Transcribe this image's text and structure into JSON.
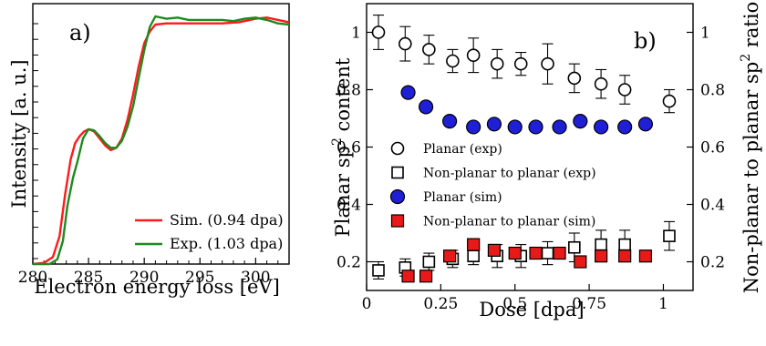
{
  "chart_data": [
    {
      "panel_label": "a)",
      "type": "line",
      "xlabel": "Electron energy loss [eV]",
      "ylabel": "Intensity [a. u.]",
      "xlim": [
        280,
        303
      ],
      "ylim": [
        0,
        1.12
      ],
      "x_ticks": [
        280,
        285,
        290,
        295,
        300
      ],
      "y_ticks_labeled": false,
      "grid": false,
      "legend_position": "lower-right",
      "series": [
        {
          "name": "Sim. (0.94 dpa)",
          "color": "#ff1a1a",
          "points": [
            [
              280,
              0.0
            ],
            [
              281,
              0.005
            ],
            [
              281.8,
              0.03
            ],
            [
              282.4,
              0.12
            ],
            [
              282.9,
              0.3
            ],
            [
              283.4,
              0.45
            ],
            [
              283.8,
              0.52
            ],
            [
              284.2,
              0.55
            ],
            [
              284.6,
              0.57
            ],
            [
              285.0,
              0.58
            ],
            [
              285.5,
              0.57
            ],
            [
              286.0,
              0.54
            ],
            [
              286.5,
              0.51
            ],
            [
              287.0,
              0.49
            ],
            [
              287.5,
              0.5
            ],
            [
              288.0,
              0.54
            ],
            [
              288.5,
              0.62
            ],
            [
              289.0,
              0.73
            ],
            [
              289.5,
              0.85
            ],
            [
              290.0,
              0.95
            ],
            [
              290.5,
              1.0
            ],
            [
              291.0,
              1.03
            ],
            [
              292.0,
              1.035
            ],
            [
              293.0,
              1.035
            ],
            [
              295.0,
              1.035
            ],
            [
              297.0,
              1.035
            ],
            [
              298.5,
              1.04
            ],
            [
              300.0,
              1.055
            ],
            [
              301.0,
              1.06
            ],
            [
              302.0,
              1.05
            ],
            [
              303.0,
              1.04
            ]
          ]
        },
        {
          "name": "Exp. (1.03 dpa)",
          "color": "#1f8a1f",
          "points": [
            [
              280,
              0.0
            ],
            [
              281.5,
              0.0
            ],
            [
              282.2,
              0.02
            ],
            [
              282.7,
              0.1
            ],
            [
              283.1,
              0.25
            ],
            [
              283.6,
              0.37
            ],
            [
              284.0,
              0.44
            ],
            [
              284.5,
              0.54
            ],
            [
              285.0,
              0.58
            ],
            [
              285.5,
              0.575
            ],
            [
              286.0,
              0.55
            ],
            [
              286.5,
              0.52
            ],
            [
              287.0,
              0.5
            ],
            [
              287.5,
              0.5
            ],
            [
              288.0,
              0.53
            ],
            [
              288.5,
              0.59
            ],
            [
              289.0,
              0.68
            ],
            [
              289.5,
              0.8
            ],
            [
              290.0,
              0.92
            ],
            [
              290.5,
              1.02
            ],
            [
              291.0,
              1.065
            ],
            [
              292.0,
              1.055
            ],
            [
              293.0,
              1.06
            ],
            [
              294.0,
              1.05
            ],
            [
              295.0,
              1.05
            ],
            [
              296.0,
              1.05
            ],
            [
              297.0,
              1.05
            ],
            [
              298.0,
              1.045
            ],
            [
              299.0,
              1.055
            ],
            [
              300.0,
              1.06
            ],
            [
              301.0,
              1.05
            ],
            [
              302.0,
              1.035
            ],
            [
              303.0,
              1.03
            ]
          ]
        }
      ]
    },
    {
      "panel_label": "b)",
      "type": "scatter",
      "xlabel": "Dose [dpa]",
      "ylabel": "Planar sp",
      "ylabel_sup": "2",
      "ylabel_rest": " content",
      "ylabel_right": "Non-planar to planar sp",
      "ylabel_right_sup": "2",
      "ylabel_right_rest": " ratio",
      "xlim": [
        0,
        1.1
      ],
      "ylim": [
        0.1,
        1.1
      ],
      "x_ticks": [
        0,
        0.25,
        0.5,
        0.75,
        1
      ],
      "x_tick_labels": [
        "0",
        "0.25",
        "0.5",
        "0.75",
        "1"
      ],
      "y_ticks": [
        0.2,
        0.4,
        0.6,
        0.8,
        1
      ],
      "y_tick_labels": [
        "0.2",
        "0.4",
        "0.6",
        "0.8",
        "1"
      ],
      "grid": false,
      "legend_position": "center",
      "series": [
        {
          "name": "Planar (exp)",
          "marker": "circle-open",
          "color": "#000000",
          "x": [
            0.04,
            0.13,
            0.21,
            0.29,
            0.36,
            0.44,
            0.52,
            0.61,
            0.7,
            0.79,
            0.87,
            1.02
          ],
          "y": [
            1.0,
            0.96,
            0.94,
            0.9,
            0.92,
            0.89,
            0.89,
            0.89,
            0.84,
            0.82,
            0.8,
            0.76
          ],
          "yerr": [
            0.06,
            0.06,
            0.05,
            0.04,
            0.06,
            0.05,
            0.04,
            0.07,
            0.05,
            0.05,
            0.05,
            0.04
          ]
        },
        {
          "name": "Non-planar to planar (exp)",
          "marker": "square-open",
          "color": "#000000",
          "x": [
            0.04,
            0.13,
            0.21,
            0.29,
            0.36,
            0.44,
            0.52,
            0.61,
            0.7,
            0.79,
            0.87,
            1.02
          ],
          "y": [
            0.17,
            0.18,
            0.2,
            0.21,
            0.22,
            0.22,
            0.22,
            0.23,
            0.25,
            0.26,
            0.26,
            0.29
          ],
          "yerr": [
            0.03,
            0.03,
            0.03,
            0.03,
            0.03,
            0.04,
            0.04,
            0.04,
            0.05,
            0.05,
            0.05,
            0.05
          ]
        },
        {
          "name": "Planar (sim)",
          "marker": "circle-filled",
          "color": "#1f1fd6",
          "x": [
            0.14,
            0.2,
            0.28,
            0.36,
            0.43,
            0.5,
            0.57,
            0.65,
            0.72,
            0.79,
            0.87,
            0.94
          ],
          "y": [
            0.79,
            0.74,
            0.69,
            0.67,
            0.68,
            0.67,
            0.67,
            0.67,
            0.69,
            0.67,
            0.67,
            0.68
          ]
        },
        {
          "name": "Non-planar to planar (sim)",
          "marker": "square-filled",
          "color": "#e81919",
          "x": [
            0.14,
            0.2,
            0.28,
            0.36,
            0.43,
            0.5,
            0.57,
            0.65,
            0.72,
            0.79,
            0.87,
            0.94
          ],
          "y": [
            0.15,
            0.15,
            0.22,
            0.26,
            0.24,
            0.23,
            0.23,
            0.23,
            0.2,
            0.22,
            0.22,
            0.22
          ]
        }
      ]
    }
  ]
}
